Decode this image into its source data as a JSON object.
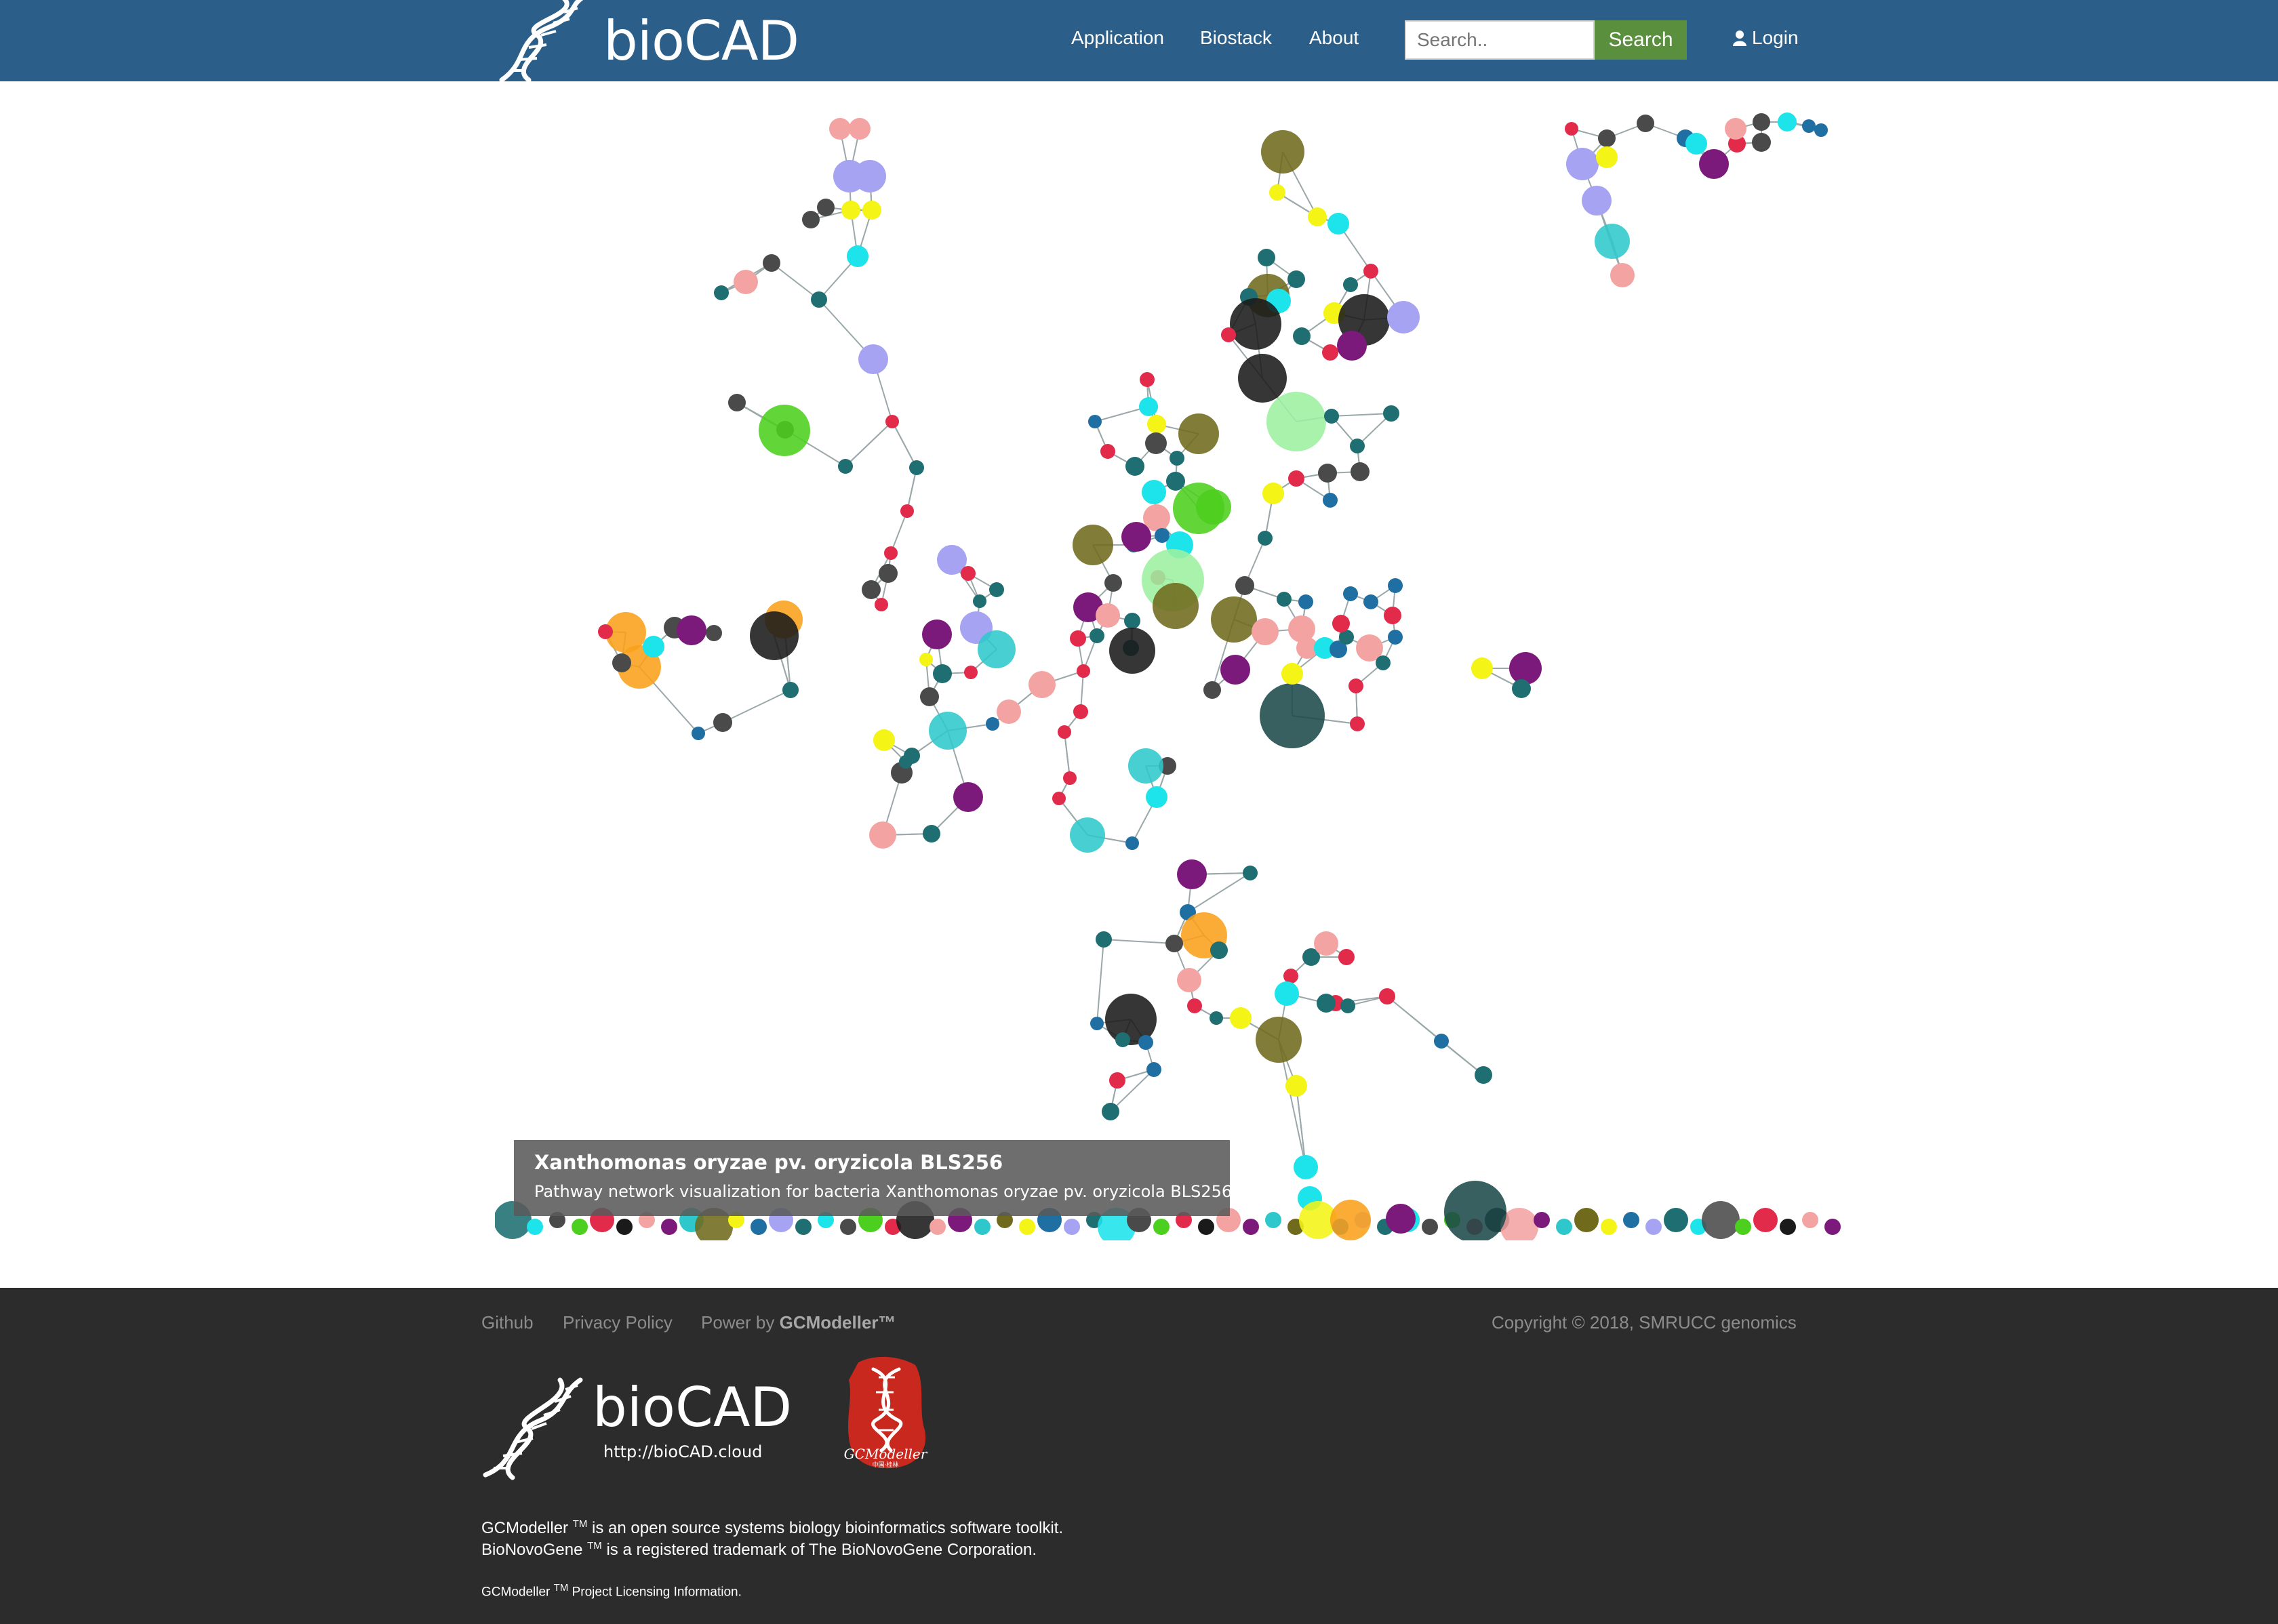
{
  "navbar": {
    "brand": "bioCAD",
    "links": [
      "Application",
      "Biostack",
      "About"
    ],
    "search_placeholder": "Search..",
    "search_button": "Search",
    "login": "Login"
  },
  "caption": {
    "title": "Xanthomonas oryzae pv. oryzicola BLS256",
    "subtitle": "Pathway network visualization for bacteria Xanthomonas oryzae pv. oryzicola BLS256"
  },
  "network_colors": {
    "teal": "#1e6e72",
    "blue": "#1f6fa3",
    "red": "#e22a4a",
    "dark": "#4a4a4a",
    "pink": "#f4a3a3",
    "lavender": "#a5a3f2",
    "yellow": "#f4f416",
    "cyan": "#1de3ea",
    "purple": "#7c1a7c",
    "olive": "#6f6a1c",
    "green": "#4ccf1e",
    "lightgreen": "#9cf0a0",
    "orange": "#f9a01a",
    "black": "#1a1a1a",
    "darkteal": "#1c4a4a",
    "turquoise": "#2ec8cc"
  },
  "footer": {
    "links": [
      "Github",
      "Privacy Policy"
    ],
    "power_by_prefix": "Power by",
    "power_by_brand": "GCModeller™",
    "copyright": "Copyright © 2018, SMRUCC genomics",
    "logo_text": "bioCAD",
    "logo_url": "http://bioCAD.cloud",
    "seal_text": "GCModeller",
    "seal_subtext": "中国·桂林",
    "gcm_name": "GCModeller",
    "tm": "TM",
    "gcm_desc": " is an open source systems biology bioinformatics software toolkit.",
    "bnv_name": "BioNovoGene",
    "bnv_desc": " is a registered trademark of The BioNovoGene Corporation.",
    "licensing": " Project Licensing Information."
  }
}
